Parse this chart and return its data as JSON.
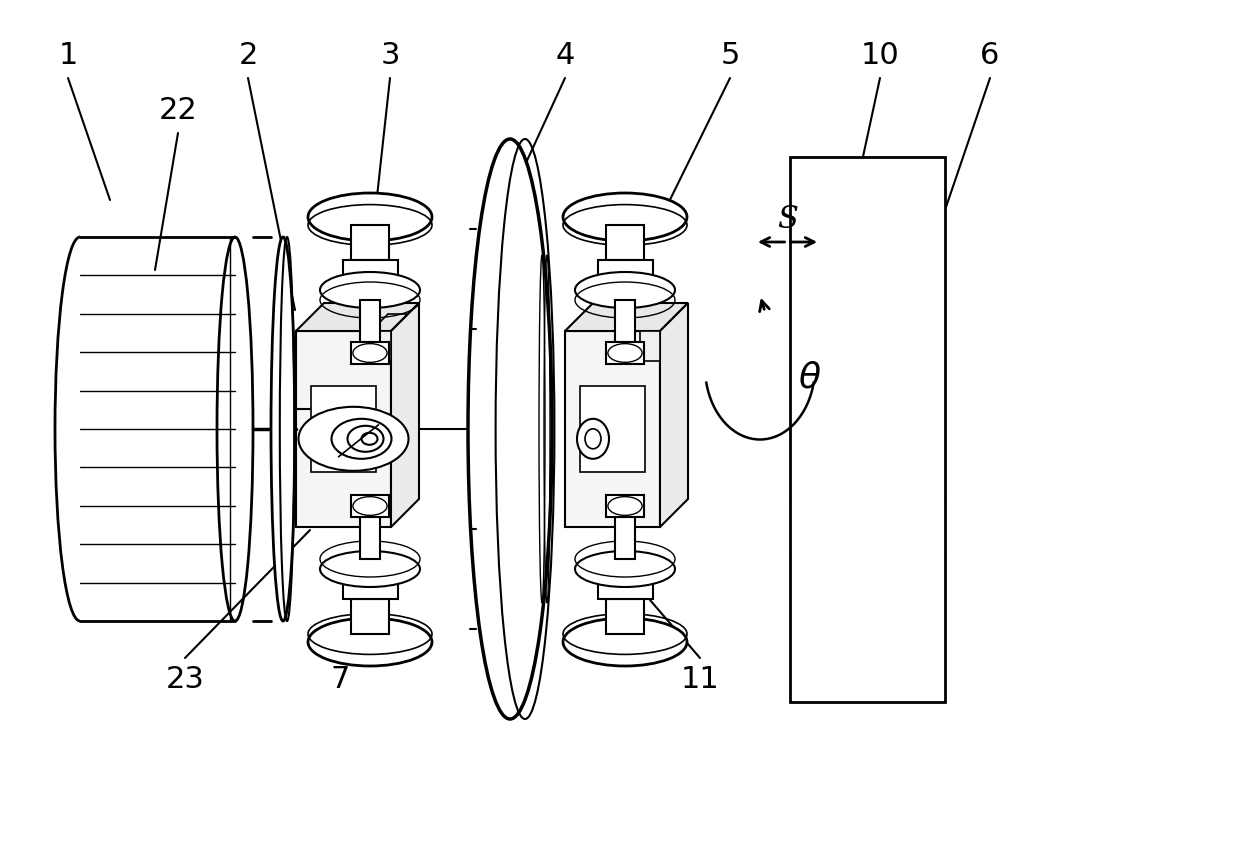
{
  "bg": "#ffffff",
  "lc": "#000000",
  "fw": 12.4,
  "fh": 8.57,
  "dpi": 100
}
